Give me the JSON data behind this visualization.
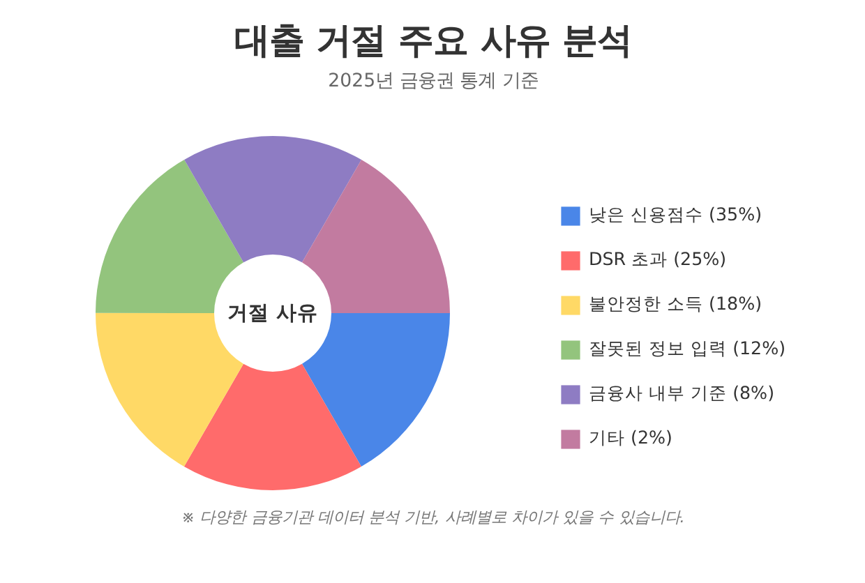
{
  "chart_data": {
    "type": "donut",
    "title": "대출 거절 주요 사유 분석",
    "subtitle": "2025년 금융권 통계 기준",
    "categories": [
      "낮은 신용점수 (35%)",
      "DSR 초과 (25%)",
      "불안정한 소득 (18%)",
      "잘못된 정보 입력 (12%)",
      "금융사 내부 기준 (8%)",
      "기타 (2%)"
    ],
    "values": [
      16.67,
      16.67,
      16.67,
      16.67,
      16.66,
      16.66
    ],
    "colors": [
      "#4a86e8",
      "#ff6b6b",
      "#ffd966",
      "#93c47d",
      "#8e7cc3",
      "#c27ba0"
    ],
    "legend": "right",
    "annotations": [
      "거절 사유",
      "※ 다양한 금융기관 데이터 분석 기반, 사례별로 차이가 있을 수 있습니다."
    ]
  }
}
